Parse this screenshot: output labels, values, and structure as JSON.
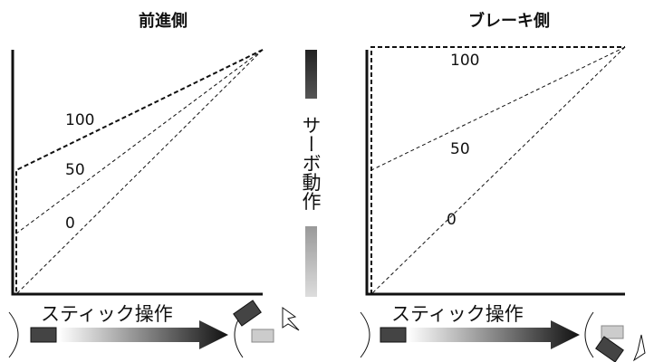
{
  "left": {
    "title": "前進側",
    "labels": [
      "100",
      "50",
      "0"
    ],
    "operation": "スティック操作"
  },
  "right": {
    "title": "ブレーキ側",
    "labels": [
      "100",
      "50",
      "0"
    ],
    "operation": "スティック操作"
  },
  "servo": "サーボ動作"
}
